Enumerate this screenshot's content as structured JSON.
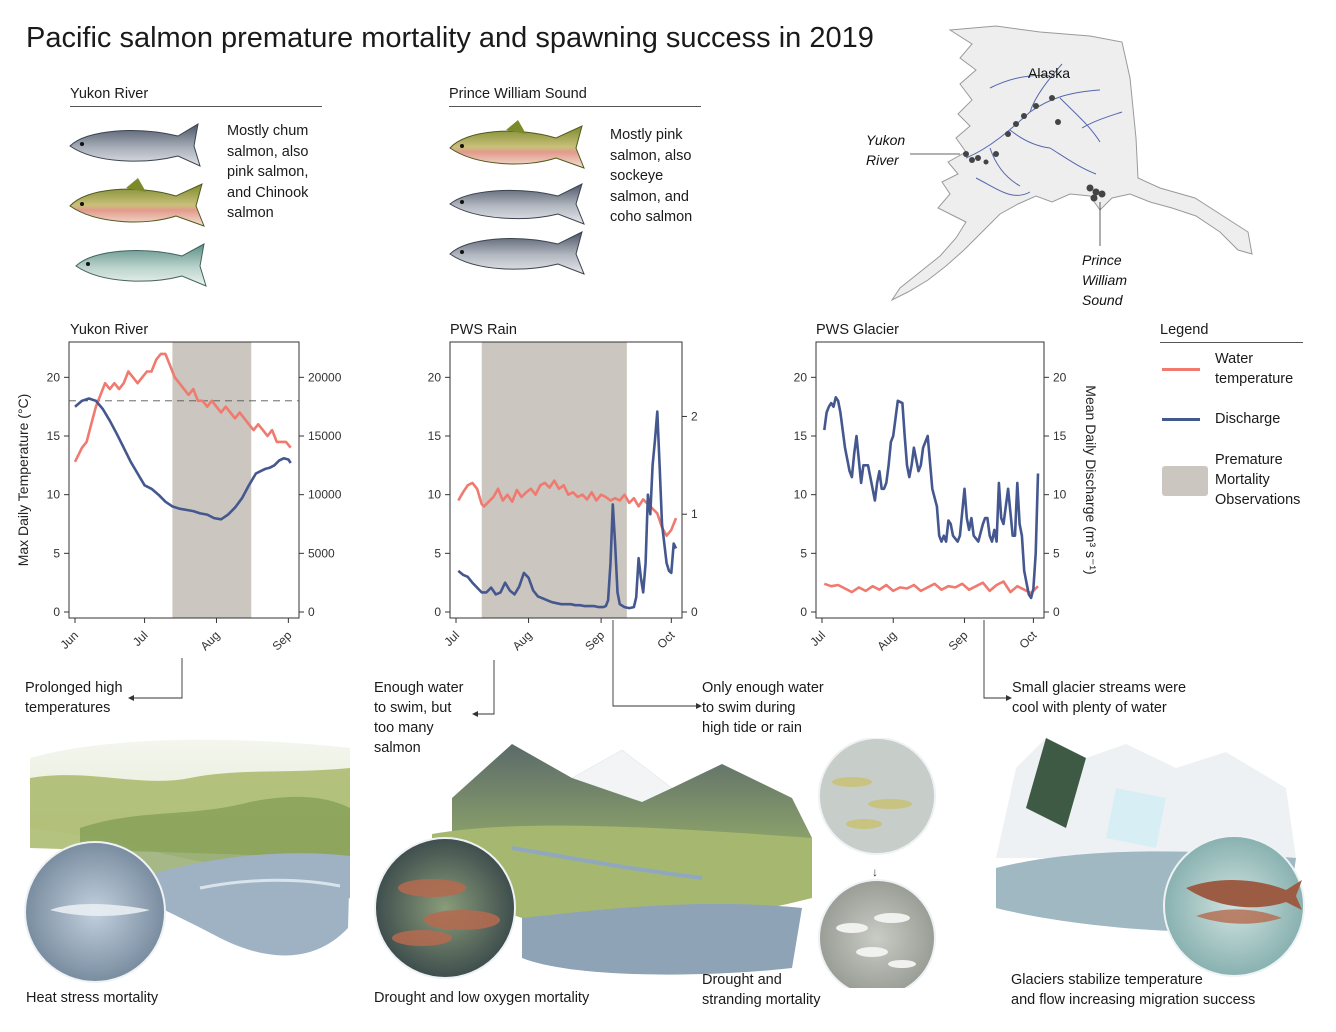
{
  "title": "Pacific salmon premature mortality and spawning success in 2019",
  "regions": [
    {
      "name": "Yukon River",
      "species_text": [
        "Mostly chum",
        "salmon, also",
        "pink salmon,",
        "and Chinook",
        "salmon"
      ]
    },
    {
      "name": "Prince William Sound",
      "species_text": [
        "Mostly pink",
        "salmon, also",
        "sockeye",
        "salmon, and",
        "coho salmon"
      ]
    }
  ],
  "map": {
    "labels": {
      "alaska": "Alaska",
      "yukon": [
        "Yukon",
        "River"
      ],
      "pws": [
        "Prince",
        "William",
        "Sound"
      ]
    },
    "colors": {
      "rivers": "#3b4fa0",
      "sites": "#444444",
      "land": "#eeeeee"
    }
  },
  "legend": {
    "title": "Legend",
    "items": [
      {
        "label": [
          "Water",
          "temperature"
        ],
        "color": "#f07a70",
        "kind": "line"
      },
      {
        "label": [
          "Discharge"
        ],
        "color": "#44578f",
        "kind": "line"
      },
      {
        "label": [
          "Premature",
          "Mortality",
          "Observations"
        ],
        "color": "#cbc6bf",
        "kind": "box"
      }
    ]
  },
  "chart_data": [
    {
      "type": "line",
      "title": "Yukon River",
      "ylabel_left": "Max Daily Temperature (°C)",
      "ylim_left": [
        0,
        22.5
      ],
      "yticks_left": [
        0,
        5,
        10,
        15,
        20
      ],
      "ylim_right": [
        0,
        22500
      ],
      "yticks_right": [
        0,
        5000,
        10000,
        15000,
        20000
      ],
      "xlim": [
        0,
        94
      ],
      "xticks": [
        {
          "x": 0,
          "label": "Jun"
        },
        {
          "x": 30,
          "label": "Jul"
        },
        {
          "x": 61,
          "label": "Aug"
        },
        {
          "x": 92,
          "label": "Sep"
        }
      ],
      "shade": [
        42,
        76
      ],
      "threshold_left": 18,
      "series": [
        {
          "name": "Water temperature",
          "axis": "left",
          "color": "#f07a70",
          "x": [
            0,
            3,
            5,
            7,
            9,
            11,
            13,
            15,
            17,
            19,
            21,
            23,
            25,
            27,
            29,
            31,
            33,
            35,
            37,
            39,
            41,
            43,
            45,
            47,
            49,
            51,
            53,
            55,
            57,
            59,
            61,
            63,
            65,
            67,
            69,
            71,
            73,
            75,
            77,
            79,
            81,
            83,
            85,
            87,
            89,
            91,
            93
          ],
          "y": [
            12.8,
            14,
            14.5,
            16,
            17.5,
            18.5,
            19.5,
            19,
            19.5,
            19,
            19.5,
            20.5,
            20,
            19.5,
            20,
            20.5,
            20.5,
            21.5,
            22,
            22,
            21,
            20,
            19.5,
            19,
            18.5,
            19,
            18,
            18,
            17.5,
            18,
            17.5,
            17,
            17.5,
            17,
            16.5,
            17,
            16.5,
            16,
            15.5,
            16,
            15.5,
            15,
            15.5,
            14.5,
            14.5,
            14.5,
            14
          ]
        },
        {
          "name": "Discharge",
          "axis": "right",
          "color": "#44578f",
          "x": [
            0,
            3,
            6,
            9,
            12,
            15,
            18,
            21,
            24,
            27,
            30,
            33,
            36,
            39,
            42,
            45,
            48,
            51,
            54,
            57,
            60,
            63,
            66,
            69,
            72,
            75,
            78,
            80,
            82,
            84,
            86,
            88,
            90,
            92,
            93
          ],
          "y": [
            17500,
            18000,
            18200,
            18000,
            17300,
            16300,
            15200,
            14000,
            12800,
            11800,
            10800,
            10500,
            10000,
            9400,
            9000,
            8800,
            8700,
            8600,
            8400,
            8300,
            8000,
            7900,
            8300,
            8900,
            9700,
            10800,
            11800,
            12000,
            12200,
            12300,
            12500,
            12900,
            13100,
            13000,
            12700
          ]
        }
      ]
    },
    {
      "type": "line",
      "title": "PWS Rain",
      "ylim_left": [
        0,
        22.5
      ],
      "yticks_left": [
        0,
        5,
        10,
        15,
        20
      ],
      "ylim_right": [
        0,
        2.7
      ],
      "yticks_right": [
        0,
        1,
        2
      ],
      "xlim": [
        0,
        94
      ],
      "xticks": [
        {
          "x": 0,
          "label": "Jul"
        },
        {
          "x": 31,
          "label": "Aug"
        },
        {
          "x": 62,
          "label": "Sep"
        },
        {
          "x": 92,
          "label": "Oct"
        }
      ],
      "shade": [
        11,
        73
      ],
      "series": [
        {
          "name": "Water temperature",
          "axis": "left",
          "color": "#f07a70",
          "x": [
            1,
            3,
            5,
            7,
            9,
            11,
            12,
            14,
            16,
            18,
            20,
            22,
            24,
            26,
            28,
            30,
            32,
            34,
            36,
            38,
            40,
            42,
            44,
            46,
            48,
            50,
            52,
            54,
            56,
            58,
            60,
            62,
            64,
            66,
            68,
            70,
            72,
            74,
            76,
            78,
            80,
            82,
            84,
            86,
            88,
            90,
            92,
            94
          ],
          "y": [
            9.5,
            10.2,
            10.8,
            11,
            10.5,
            9.2,
            9,
            9.4,
            9.8,
            10.5,
            9.5,
            10,
            9.4,
            10.4,
            9.8,
            10.2,
            10.5,
            10,
            10.8,
            11,
            10.6,
            11.2,
            10.5,
            10.8,
            10,
            10.2,
            9.8,
            10,
            9.6,
            10.2,
            9.5,
            10,
            9.8,
            9.5,
            9.7,
            9.5,
            10,
            9.3,
            9.7,
            9,
            9.6,
            9.2,
            8.8,
            8.4,
            7.2,
            6.5,
            7,
            8
          ]
        },
        {
          "name": "Discharge",
          "axis": "right",
          "color": "#44578f",
          "x": [
            1,
            3,
            5,
            7,
            9,
            11,
            13,
            15,
            17,
            19,
            21,
            23,
            25,
            27,
            29,
            31,
            33,
            35,
            37,
            39,
            41,
            43,
            45,
            47,
            49,
            51,
            53,
            55,
            57,
            59,
            61,
            63,
            64,
            65,
            66,
            67,
            68,
            69,
            70,
            72,
            74,
            76,
            77,
            78,
            79,
            80,
            81,
            82,
            83,
            84,
            85,
            86,
            87,
            88,
            89,
            90,
            91,
            92,
            93,
            94
          ],
          "y": [
            0.42,
            0.38,
            0.36,
            0.3,
            0.25,
            0.2,
            0.2,
            0.25,
            0.18,
            0.2,
            0.3,
            0.22,
            0.18,
            0.26,
            0.4,
            0.35,
            0.22,
            0.16,
            0.14,
            0.12,
            0.1,
            0.09,
            0.08,
            0.08,
            0.08,
            0.07,
            0.07,
            0.06,
            0.06,
            0.06,
            0.05,
            0.05,
            0.06,
            0.12,
            0.5,
            1.1,
            0.7,
            0.2,
            0.08,
            0.05,
            0.04,
            0.05,
            0.15,
            0.55,
            0.35,
            0.2,
            0.5,
            1.2,
            1.0,
            1.5,
            1.75,
            2.05,
            1.5,
            0.9,
            0.7,
            0.5,
            0.42,
            0.4,
            0.7,
            0.65
          ]
        }
      ]
    },
    {
      "type": "line",
      "title": "PWS Glacier",
      "ylabel_right": "Mean Daily Discharge (m³ s⁻¹)",
      "ylim_left": [
        0,
        22.5
      ],
      "yticks_left": [
        0,
        5,
        10,
        15,
        20
      ],
      "ylim_right": [
        0,
        22.5
      ],
      "yticks_right": [
        0,
        5,
        10,
        15,
        20
      ],
      "xlim": [
        0,
        94
      ],
      "xticks": [
        {
          "x": 0,
          "label": "Jul"
        },
        {
          "x": 31,
          "label": "Aug"
        },
        {
          "x": 62,
          "label": "Sep"
        },
        {
          "x": 92,
          "label": "Oct"
        }
      ],
      "series": [
        {
          "name": "Water temperature",
          "axis": "left",
          "color": "#f07a70",
          "x": [
            1,
            4,
            7,
            10,
            13,
            16,
            19,
            22,
            25,
            28,
            31,
            34,
            37,
            40,
            43,
            46,
            49,
            52,
            55,
            58,
            61,
            64,
            67,
            70,
            73,
            76,
            79,
            82,
            85,
            88,
            91,
            94
          ],
          "y": [
            2.4,
            2.2,
            2.3,
            2,
            1.7,
            2.1,
            1.8,
            2.2,
            1.9,
            2.3,
            1.8,
            2.1,
            2,
            2.3,
            1.8,
            2.1,
            2.4,
            1.9,
            2.2,
            2.1,
            2.4,
            1.9,
            2.2,
            2.5,
            1.8,
            2.3,
            2.6,
            1.7,
            2.2,
            1.9,
            1.6,
            2.2
          ]
        },
        {
          "name": "Discharge",
          "axis": "right",
          "color": "#44578f",
          "x": [
            1,
            2,
            3,
            4,
            5,
            6,
            7,
            8,
            10,
            12,
            13,
            14,
            15,
            16,
            17,
            18,
            20,
            22,
            23,
            24,
            25,
            26,
            27,
            28,
            29,
            30,
            31,
            33,
            35,
            36,
            37,
            38,
            39,
            40,
            41,
            42,
            43,
            44,
            46,
            48,
            50,
            51,
            52,
            53,
            54,
            55,
            56,
            57,
            59,
            60,
            62,
            63,
            64,
            65,
            66,
            68,
            70,
            71,
            72,
            73,
            74,
            75,
            76,
            77,
            78,
            79,
            80,
            81,
            82,
            83,
            84,
            85,
            86,
            87,
            88,
            89,
            90,
            91,
            92,
            93,
            94
          ],
          "y": [
            15.5,
            17,
            17.5,
            17.8,
            17.5,
            18.3,
            18,
            17,
            14,
            12,
            11.5,
            13.5,
            15,
            13,
            11,
            12.5,
            12.5,
            10.5,
            9.5,
            11,
            12,
            10.5,
            10.5,
            11,
            12.5,
            14.5,
            15,
            18,
            17.8,
            15,
            12.5,
            11.5,
            12.5,
            14,
            13,
            12,
            12.5,
            14,
            15,
            10.5,
            9,
            6.5,
            6,
            6.5,
            6,
            7.8,
            7.5,
            6.5,
            6,
            6.5,
            10.5,
            8,
            7,
            8,
            6.5,
            6,
            7.5,
            8,
            8,
            6.5,
            6,
            7,
            6,
            11,
            8,
            7.5,
            9,
            10.5,
            8.5,
            6.5,
            6.5,
            11,
            7.5,
            6.5,
            3.5,
            2.5,
            1.5,
            1.2,
            2,
            5,
            11.8
          ]
        }
      ]
    }
  ],
  "annotations": {
    "yukon": [
      "Prolonged high",
      "temperatures"
    ],
    "rain_many": [
      "Enough water",
      "to swim, but",
      "too many",
      "salmon"
    ],
    "rain_tide": [
      "Only enough water",
      "to swim during",
      "high tide or rain"
    ],
    "glacier": [
      "Small glacier streams were",
      "cool with plenty of water"
    ]
  },
  "captions": {
    "heat": "Heat stress mortality",
    "drought_oxygen": "Drought and low oxygen mortality",
    "stranding": [
      "Drought and",
      "stranding mortality"
    ],
    "glacier": [
      "Glaciers stabilize temperature",
      "and flow increasing migration success"
    ]
  },
  "colors": {
    "temperature": "#f07a70",
    "discharge": "#44578f",
    "shade": "#cbc6bf",
    "axis": "#333333"
  }
}
